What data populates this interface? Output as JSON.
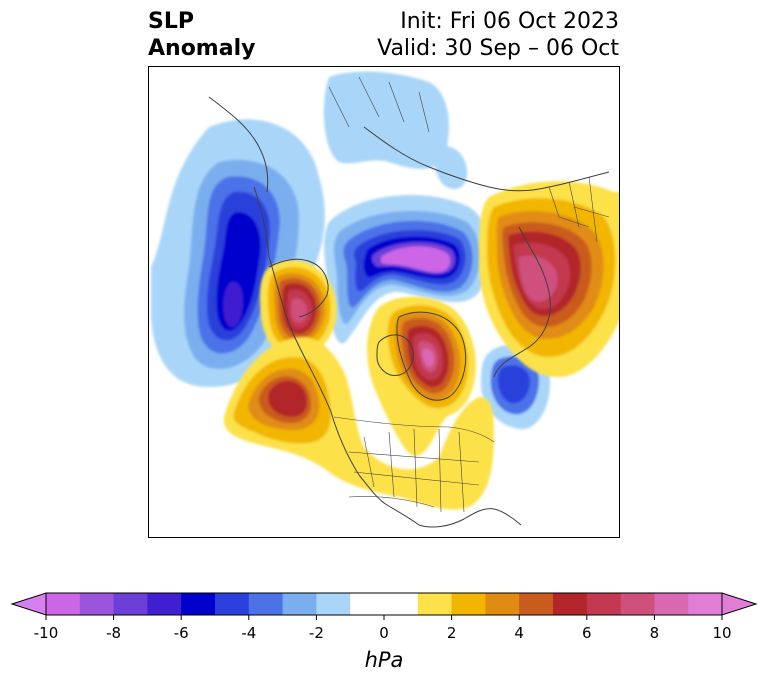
{
  "title": {
    "left_line1": "SLP",
    "left_line2": "Anomaly",
    "right_line1": "Init: Fri 06 Oct 2023",
    "right_line2": "Valid: 30 Sep – 06 Oct"
  },
  "map": {
    "projection": "north-polar stereographic",
    "region": "Northern Hemisphere / North America",
    "anomaly_centers": [
      {
        "region": "NE Pacific / Gulf of Alaska",
        "sign": "negative",
        "peak_hpa": -7
      },
      {
        "region": "Arctic Ocean / Siberian coast",
        "sign": "negative",
        "peak_hpa": -9
      },
      {
        "region": "North Atlantic",
        "sign": "negative",
        "peak_hpa": -6
      },
      {
        "region": "Alaska / Chukotka",
        "sign": "positive",
        "peak_hpa": 7
      },
      {
        "region": "Subtropical NE Pacific",
        "sign": "positive",
        "peak_hpa": 6
      },
      {
        "region": "Greenland",
        "sign": "positive",
        "peak_hpa": 8
      },
      {
        "region": "Scandinavia / NW Russia",
        "sign": "positive",
        "peak_hpa": 7
      },
      {
        "region": "Eastern North America",
        "sign": "positive",
        "peak_hpa": 2
      }
    ]
  },
  "colorbar": {
    "unit": "hPa",
    "levels": [
      -10,
      -9,
      -8,
      -7,
      -6,
      -5,
      -4,
      -3,
      -2,
      -1,
      1,
      2,
      3,
      4,
      5,
      6,
      7,
      8,
      9,
      10
    ],
    "tick_labels": [
      "-10",
      "-8",
      "-6",
      "-4",
      "-2",
      "0",
      "2",
      "4",
      "6",
      "8",
      "10"
    ],
    "colors": [
      "#cc66e6",
      "#9b55dd",
      "#6b3fd8",
      "#3f1fd0",
      "#0000cc",
      "#2a3fdb",
      "#4c72e8",
      "#7aaeef",
      "#a9d6f8",
      "#ffffff",
      "#fce14a",
      "#f2b600",
      "#e08c12",
      "#c95b1c",
      "#b2262a",
      "#c2384e",
      "#cf4f7d",
      "#d868b0",
      "#e07ed6"
    ],
    "extend_low": "#d67ff0",
    "extend_high": "#e07ed6"
  }
}
